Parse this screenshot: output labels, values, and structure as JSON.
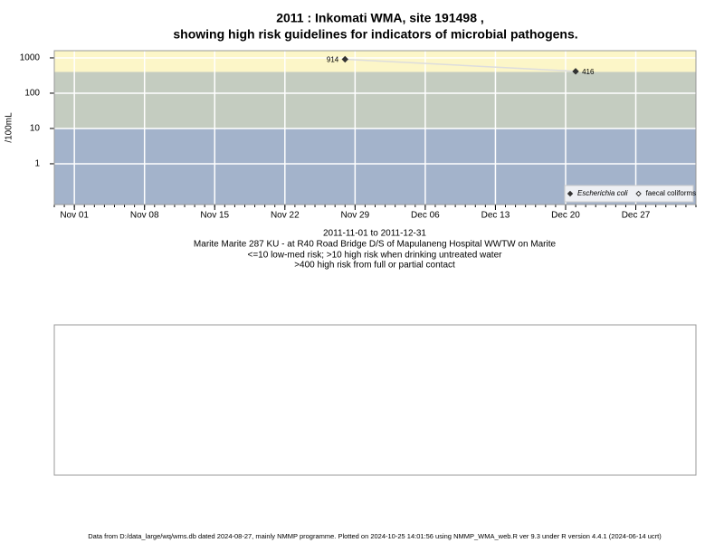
{
  "chart_data": {
    "type": "line",
    "title": [
      "2011 : Inkomati WMA, site 191498 ,",
      "showing high risk guidelines for indicators of microbial pathogens."
    ],
    "ylabel": "/100mL",
    "log_y": true,
    "ylim": [
      0.07,
      1600
    ],
    "yticks": [
      1,
      10,
      100,
      1000
    ],
    "xlim": [
      "2011-10-30",
      "2012-01-02"
    ],
    "xticks": [
      {
        "value": "2011-11-01",
        "label": "Nov 01"
      },
      {
        "value": "2011-11-08",
        "label": "Nov 08"
      },
      {
        "value": "2011-11-15",
        "label": "Nov 15"
      },
      {
        "value": "2011-11-22",
        "label": "Nov 22"
      },
      {
        "value": "2011-11-29",
        "label": "Nov 29"
      },
      {
        "value": "2011-12-06",
        "label": "Dec 06"
      },
      {
        "value": "2011-12-13",
        "label": "Dec 13"
      },
      {
        "value": "2011-12-20",
        "label": "Dec 20"
      },
      {
        "value": "2011-12-27",
        "label": "Dec 27"
      }
    ],
    "grid": true,
    "thresholds": [
      10,
      400
    ],
    "band_colors": [
      "#a3b3cb",
      "#c4ccc0",
      "#fcf6c8"
    ],
    "x": [
      "2011-11-28",
      "2011-12-21"
    ],
    "series": [
      {
        "name": "Escherichia coli",
        "color": "#333333",
        "line_color": "#dddddd",
        "values": [
          914,
          416
        ],
        "value_labels": [
          "914",
          "416"
        ]
      },
      {
        "name": "faecal coliforms",
        "color": "#333333",
        "values": [
          null,
          null
        ]
      }
    ],
    "legend": "bottom-right",
    "notes": [
      "2011-11-01 to 2011-12-31",
      "Marite Marite 287 KU - at R40 Road Bridge D/S of Mapulaneng Hospital WWTW on Marite",
      "<=10 low-med risk; >10 high risk when drinking untreated water",
      ">400 high risk from full or partial contact"
    ],
    "footer": "Data from D:/data_large/wq/wms.db dated 2024-08-27, mainly NMMP programme. Plotted on 2024-10-25 14:01:56 using NMMP_WMA_web.R ver 9.3 under R version 4.4.1 (2024-06-14 ucrt)"
  }
}
